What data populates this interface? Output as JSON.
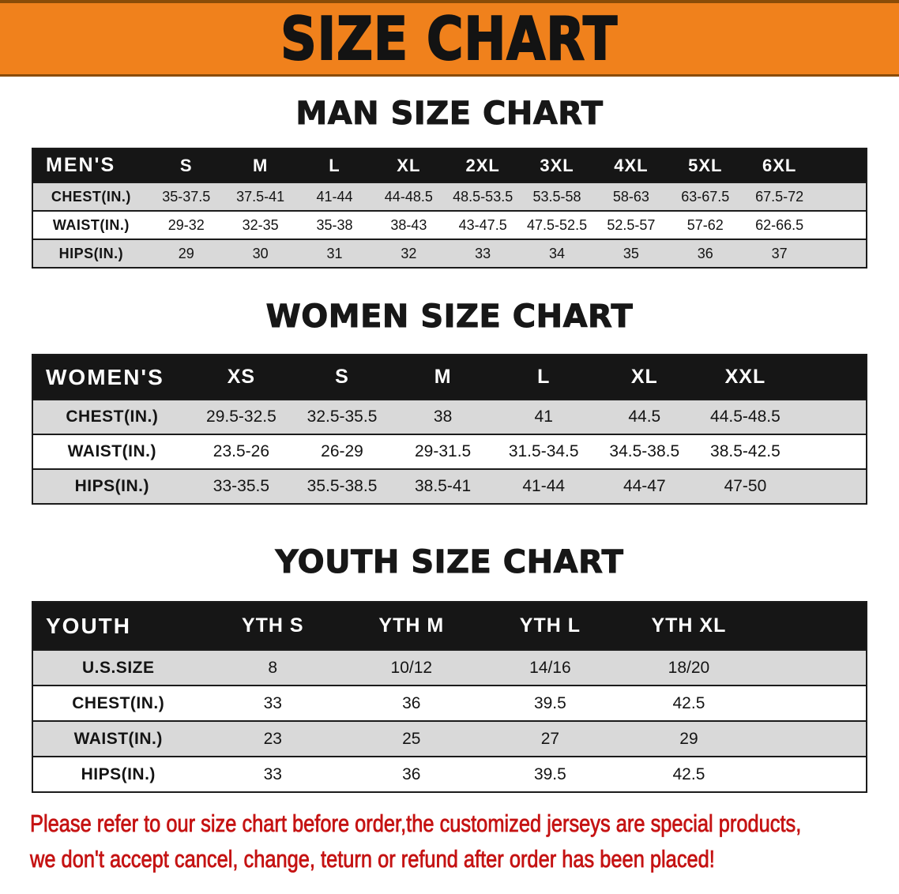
{
  "banner": {
    "title": "SIZE CHART"
  },
  "colors": {
    "banner_bg": "#f0811c",
    "banner_edge": "#8a4c08",
    "table_header_bg": "#161616",
    "table_header_text": "#ffffff",
    "row_shade": "#d9d9d9",
    "row_plain": "#ffffff",
    "table_line": "#1b1b1b",
    "note_text": "#c51313"
  },
  "chart_data": [
    {
      "type": "table",
      "title": "MAN SIZE CHART",
      "columns": [
        "MEN'S",
        "S",
        "M",
        "L",
        "XL",
        "2XL",
        "3XL",
        "4XL",
        "5XL",
        "6XL"
      ],
      "rows": [
        [
          "CHEST(IN.)",
          "35-37.5",
          "37.5-41",
          "41-44",
          "44-48.5",
          "48.5-53.5",
          "53.5-58",
          "58-63",
          "63-67.5",
          "67.5-72"
        ],
        [
          "WAIST(IN.)",
          "29-32",
          "32-35",
          "35-38",
          "38-43",
          "43-47.5",
          "47.5-52.5",
          "52.5-57",
          "57-62",
          "62-66.5"
        ],
        [
          "HIPS(IN.)",
          "29",
          "30",
          "31",
          "32",
          "33",
          "34",
          "35",
          "36",
          "37"
        ]
      ]
    },
    {
      "type": "table",
      "title": "WOMEN SIZE CHART",
      "columns": [
        "WOMEN'S",
        "XS",
        "S",
        "M",
        "L",
        "XL",
        "XXL"
      ],
      "rows": [
        [
          "CHEST(IN.)",
          "29.5-32.5",
          "32.5-35.5",
          "38",
          "41",
          "44.5",
          "44.5-48.5"
        ],
        [
          "WAIST(IN.)",
          "23.5-26",
          "26-29",
          "29-31.5",
          "31.5-34.5",
          "34.5-38.5",
          "38.5-42.5"
        ],
        [
          "HIPS(IN.)",
          "33-35.5",
          "35.5-38.5",
          "38.5-41",
          "41-44",
          "44-47",
          "47-50"
        ]
      ]
    },
    {
      "type": "table",
      "title": "YOUTH SIZE CHART",
      "columns": [
        "YOUTH",
        "YTH S",
        "YTH M",
        "YTH L",
        "YTH XL"
      ],
      "rows": [
        [
          "U.S.SIZE",
          "8",
          "10/12",
          "14/16",
          "18/20"
        ],
        [
          "CHEST(IN.)",
          "33",
          "36",
          "39.5",
          "42.5"
        ],
        [
          "WAIST(IN.)",
          "23",
          "25",
          "27",
          "29"
        ],
        [
          "HIPS(IN.)",
          "33",
          "36",
          "39.5",
          "42.5"
        ]
      ]
    }
  ],
  "note": {
    "line1": "Please refer to our size chart before order,the customized jerseys are special products,",
    "line2": "we don't accept cancel, change, teturn or refund after order has been placed!"
  }
}
